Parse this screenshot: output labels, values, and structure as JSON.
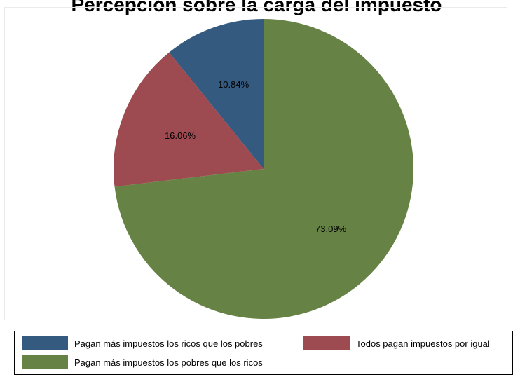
{
  "chart_data": {
    "type": "pie",
    "title": "Percepción sobre la carga del impuesto",
    "slices": [
      {
        "label": "Pagan más impuestos los ricos que los pobres",
        "value": 10.84,
        "display": "10.84%",
        "color": "#345a80"
      },
      {
        "label": "Todos pagan impuestos por igual",
        "value": 16.06,
        "display": "16.06%",
        "color": "#9d4a51"
      },
      {
        "label": "Pagan más impuestos los pobres que los ricos",
        "value": 73.09,
        "display": "73.09%",
        "color": "#668244"
      }
    ],
    "start_angle": "12 o'clock",
    "direction": "counterclockwise",
    "legend_position": "bottom"
  }
}
